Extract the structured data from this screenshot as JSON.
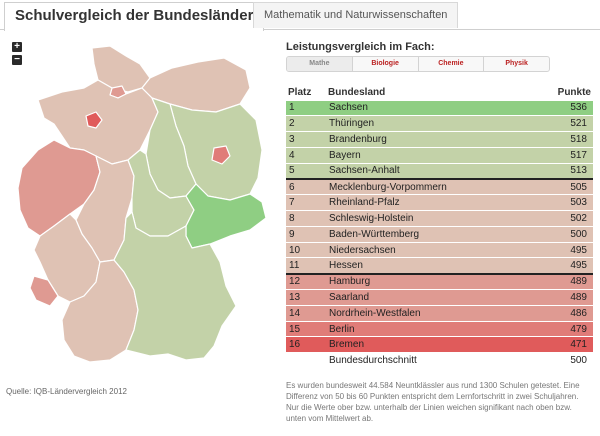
{
  "header": {
    "title": "Schulvergleich der Bundesländer",
    "subtitle_tab": "Mathematik und Naturwissenschaften"
  },
  "map": {
    "zoom_in": "+",
    "zoom_out": "−",
    "source": "Quelle: IQB-Ländervergleich 2012"
  },
  "panel": {
    "title": "Leistungsvergleich im Fach:",
    "subjects": [
      {
        "label": "Mathe",
        "active": true
      },
      {
        "label": "Biologie",
        "active": false
      },
      {
        "label": "Chemie",
        "active": false
      },
      {
        "label": "Physik",
        "active": false
      }
    ]
  },
  "table": {
    "headers": {
      "place": "Platz",
      "state": "Bundesland",
      "points": "Punkte"
    },
    "rows": [
      {
        "place": "1",
        "state": "Sachsen",
        "points": "536",
        "color": "#8fce83"
      },
      {
        "place": "2",
        "state": "Thüringen",
        "points": "521",
        "color": "#c3d2a8"
      },
      {
        "place": "3",
        "state": "Brandenburg",
        "points": "518",
        "color": "#c3d2a8"
      },
      {
        "place": "4",
        "state": "Bayern",
        "points": "517",
        "color": "#c3d2a8"
      },
      {
        "place": "5",
        "state": "Sachsen-Anhalt",
        "points": "513",
        "color": "#c3d2a8"
      },
      {
        "place": "6",
        "state": "Mecklenburg-Vorpommern",
        "points": "505",
        "color": "#dfc2b4"
      },
      {
        "place": "7",
        "state": "Rheinland-Pfalz",
        "points": "503",
        "color": "#dfc2b4"
      },
      {
        "place": "8",
        "state": "Schleswig-Holstein",
        "points": "502",
        "color": "#dfc2b4"
      },
      {
        "place": "9",
        "state": "Baden-Württemberg",
        "points": "500",
        "color": "#dfc2b4"
      },
      {
        "place": "10",
        "state": "Niedersachsen",
        "points": "495",
        "color": "#dfc2b4"
      },
      {
        "place": "11",
        "state": "Hessen",
        "points": "495",
        "color": "#dfc2b4"
      },
      {
        "place": "12",
        "state": "Hamburg",
        "points": "489",
        "color": "#df9a92"
      },
      {
        "place": "13",
        "state": "Saarland",
        "points": "489",
        "color": "#df9a92"
      },
      {
        "place": "14",
        "state": "Nordrhein-Westfalen",
        "points": "486",
        "color": "#df9a92"
      },
      {
        "place": "15",
        "state": "Berlin",
        "points": "479",
        "color": "#e07c78"
      },
      {
        "place": "16",
        "state": "Bremen",
        "points": "471",
        "color": "#e05b5b"
      }
    ],
    "separators_after": [
      "5",
      "11"
    ],
    "average_label": "Bundesdurchschnitt",
    "average_points": "500"
  },
  "info_text": "Es wurden bundesweit 44.584 Neuntklässler aus rund 1300 Schulen getestet. Eine Differenz von 50 bis 60 Punkten entspricht dem Lernfortschritt in zwei Schuljahren. Nur die Werte ober bzw. unterhalb der Linien weichen signifikant nach oben bzw. unten vom Mittelwert ab."
}
